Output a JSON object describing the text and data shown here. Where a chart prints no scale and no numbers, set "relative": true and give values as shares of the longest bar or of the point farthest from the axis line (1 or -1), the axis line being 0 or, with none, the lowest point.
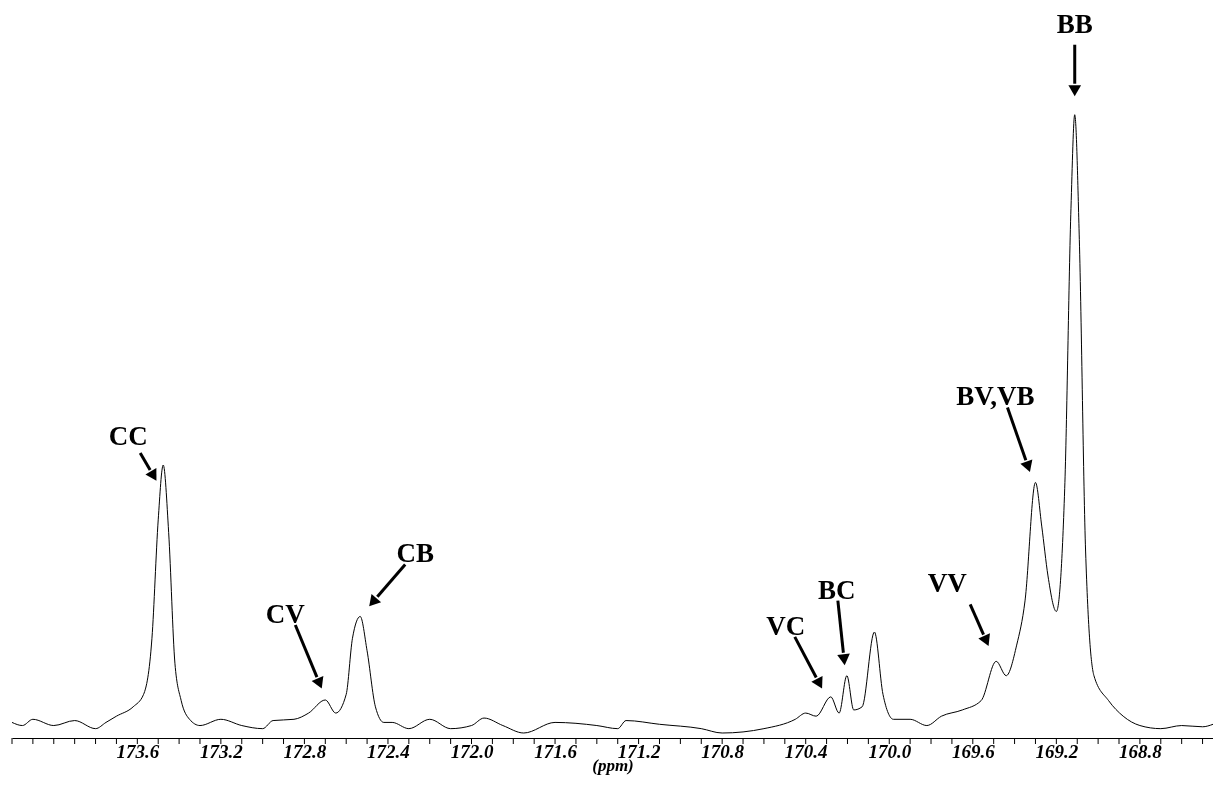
{
  "chart_data": {
    "type": "line",
    "relative": true,
    "color": "#000000",
    "xlabel": "(ppm)",
    "xlim": [
      174.2,
      168.45
    ],
    "xticks": [
      {
        "value": 174.2,
        "label": null
      },
      {
        "value": 174.1,
        "label": null
      },
      {
        "value": 174.0,
        "label": null
      },
      {
        "value": 173.9,
        "label": null
      },
      {
        "value": 173.8,
        "label": null
      },
      {
        "value": 173.7,
        "label": null
      },
      173.6,
      {
        "value": 173.5,
        "label": null
      },
      {
        "value": 173.4,
        "label": null
      },
      {
        "value": 173.3,
        "label": null
      },
      173.2,
      {
        "value": 173.1,
        "label": null
      },
      {
        "value": 173.0,
        "label": null
      },
      {
        "value": 172.9,
        "label": null
      },
      172.8,
      {
        "value": 172.7,
        "label": null
      },
      {
        "value": 172.6,
        "label": null
      },
      {
        "value": 172.5,
        "label": null
      },
      172.4,
      {
        "value": 172.3,
        "label": null
      },
      {
        "value": 172.2,
        "label": null
      },
      {
        "value": 172.1,
        "label": null
      },
      {
        "value": 172,
        "label": "172.0"
      },
      {
        "value": 171.9,
        "label": null
      },
      {
        "value": 171.8,
        "label": null
      },
      {
        "value": 171.7,
        "label": null
      },
      171.6,
      {
        "value": 171.5,
        "label": null
      },
      {
        "value": 171.4,
        "label": null
      },
      {
        "value": 171.3,
        "label": null
      },
      171.2,
      {
        "value": 171.1,
        "label": null
      },
      {
        "value": 171.0,
        "label": null
      },
      {
        "value": 170.9,
        "label": null
      },
      170.8,
      {
        "value": 170.7,
        "label": null
      },
      {
        "value": 170.6,
        "label": null
      },
      {
        "value": 170.5,
        "label": null
      },
      170.4,
      {
        "value": 170.3,
        "label": null
      },
      {
        "value": 170.2,
        "label": null
      },
      {
        "value": 170.1,
        "label": null
      },
      {
        "value": 170,
        "label": "170.0"
      },
      {
        "value": 169.9,
        "label": null
      },
      {
        "value": 169.8,
        "label": null
      },
      {
        "value": 169.7,
        "label": null
      },
      169.6,
      {
        "value": 169.5,
        "label": null
      },
      {
        "value": 169.4,
        "label": null
      },
      {
        "value": 169.3,
        "label": null
      },
      169.2,
      {
        "value": 169.1,
        "label": null
      },
      {
        "value": 169.0,
        "label": null
      },
      {
        "value": 168.9,
        "label": null
      },
      168.8,
      {
        "value": 168.7,
        "label": null
      },
      {
        "value": 168.6,
        "label": null
      },
      {
        "value": 168.5,
        "label": null
      }
    ],
    "x": [
      174.2,
      174.15,
      174.1,
      174.0,
      173.9,
      173.8,
      173.75,
      173.7,
      173.62,
      173.57,
      173.53,
      173.5,
      173.476,
      173.45,
      173.42,
      173.39,
      173.35,
      173.3,
      173.2,
      173.1,
      173.0,
      172.95,
      172.85,
      172.78,
      172.7,
      172.65,
      172.6,
      172.57,
      172.533,
      172.5,
      172.46,
      172.42,
      172.38,
      172.3,
      172.2,
      172.1,
      172.0,
      171.94,
      171.85,
      171.75,
      171.6,
      171.4,
      171.3,
      171.26,
      171.1,
      170.9,
      170.8,
      170.6,
      170.45,
      170.4,
      170.35,
      170.28,
      170.24,
      170.203,
      170.17,
      170.13,
      170.071,
      170.03,
      169.98,
      169.9,
      169.82,
      169.75,
      169.65,
      169.56,
      169.488,
      169.44,
      169.39,
      169.35,
      169.3,
      169.27,
      169.24,
      169.2,
      169.16,
      169.13,
      169.112,
      169.09,
      169.06,
      169.02,
      168.95,
      168.88,
      168.8,
      168.7,
      168.6,
      168.5,
      168.45
    ],
    "values": [
      0.025,
      0.02,
      0.03,
      0.02,
      0.028,
      0.015,
      0.025,
      0.035,
      0.05,
      0.07,
      0.16,
      0.35,
      0.438,
      0.33,
      0.12,
      0.06,
      0.03,
      0.02,
      0.03,
      0.02,
      0.015,
      0.028,
      0.03,
      0.04,
      0.061,
      0.04,
      0.07,
      0.16,
      0.195,
      0.14,
      0.05,
      0.025,
      0.025,
      0.015,
      0.03,
      0.015,
      0.02,
      0.032,
      0.02,
      0.008,
      0.025,
      0.02,
      0.015,
      0.028,
      0.022,
      0.015,
      0.008,
      0.015,
      0.03,
      0.04,
      0.035,
      0.066,
      0.04,
      0.1,
      0.045,
      0.05,
      0.17,
      0.07,
      0.03,
      0.03,
      0.02,
      0.035,
      0.045,
      0.06,
      0.123,
      0.1,
      0.149,
      0.22,
      0.41,
      0.34,
      0.26,
      0.203,
      0.4,
      0.85,
      1.0,
      0.8,
      0.3,
      0.1,
      0.06,
      0.035,
      0.02,
      0.015,
      0.02,
      0.018,
      0.022
    ],
    "annotations": [
      {
        "text": "CC",
        "x": 173.476,
        "y": 0.438
      },
      {
        "text": "CV",
        "x": 172.7,
        "y": 0.061
      },
      {
        "text": "CB",
        "x": 172.533,
        "y": 0.195
      },
      {
        "text": "VC",
        "x": 170.28,
        "y": 0.066
      },
      {
        "text": "BC",
        "x": 170.203,
        "y": 0.1
      },
      {
        "text": "VV",
        "x": 169.488,
        "y": 0.123
      },
      {
        "text": "BV,VB",
        "x": 169.3,
        "y": 0.41
      },
      {
        "text": "BB",
        "x": 169.112,
        "y": 1.0
      }
    ]
  }
}
